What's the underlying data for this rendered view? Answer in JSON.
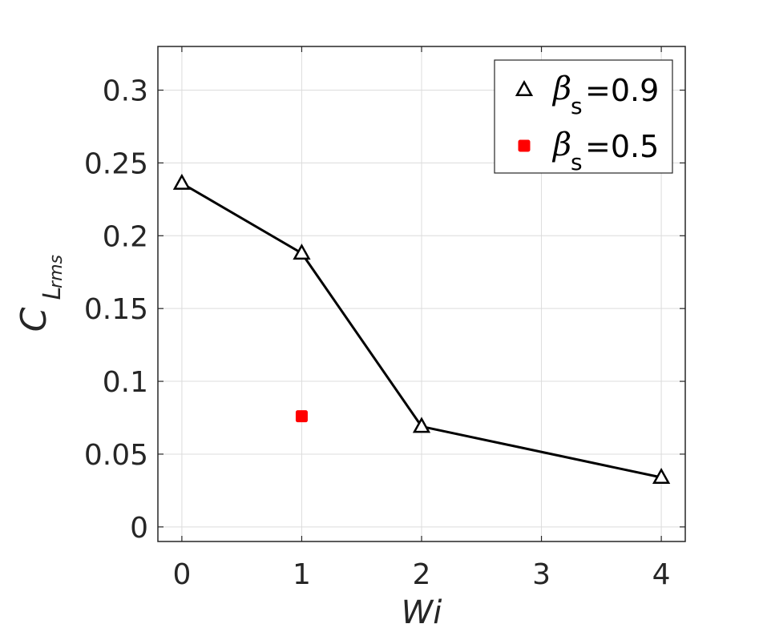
{
  "chart_data": {
    "type": "scatter",
    "xlabel": "Wi",
    "ylabel_main": "C",
    "ylabel_sub": "L",
    "ylabel_subsub": "rms",
    "xlim": [
      -0.2,
      4.2
    ],
    "ylim": [
      -0.01,
      0.33
    ],
    "x_ticks": [
      0,
      1,
      2,
      3,
      4
    ],
    "x_tick_labels": [
      "0",
      "1",
      "2",
      "3",
      "4"
    ],
    "y_ticks": [
      0,
      0.05,
      0.1,
      0.15,
      0.2,
      0.25,
      0.3
    ],
    "y_tick_labels": [
      "0",
      "0.05",
      "0.1",
      "0.15",
      "0.2",
      "0.25",
      "0.3"
    ],
    "grid": true,
    "legend_position": "top-right",
    "series": [
      {
        "name": "=0.9",
        "legend_symbol": "β",
        "legend_sub": "s",
        "marker": "triangle",
        "line": true,
        "color": "#000000",
        "x": [
          0,
          1,
          2,
          4
        ],
        "y": [
          0.236,
          0.188,
          0.069,
          0.034
        ]
      },
      {
        "name": "=0.5",
        "legend_symbol": "β",
        "legend_sub": "s",
        "marker": "square",
        "line": false,
        "color": "#ff0000",
        "x": [
          1
        ],
        "y": [
          0.076
        ]
      }
    ]
  }
}
